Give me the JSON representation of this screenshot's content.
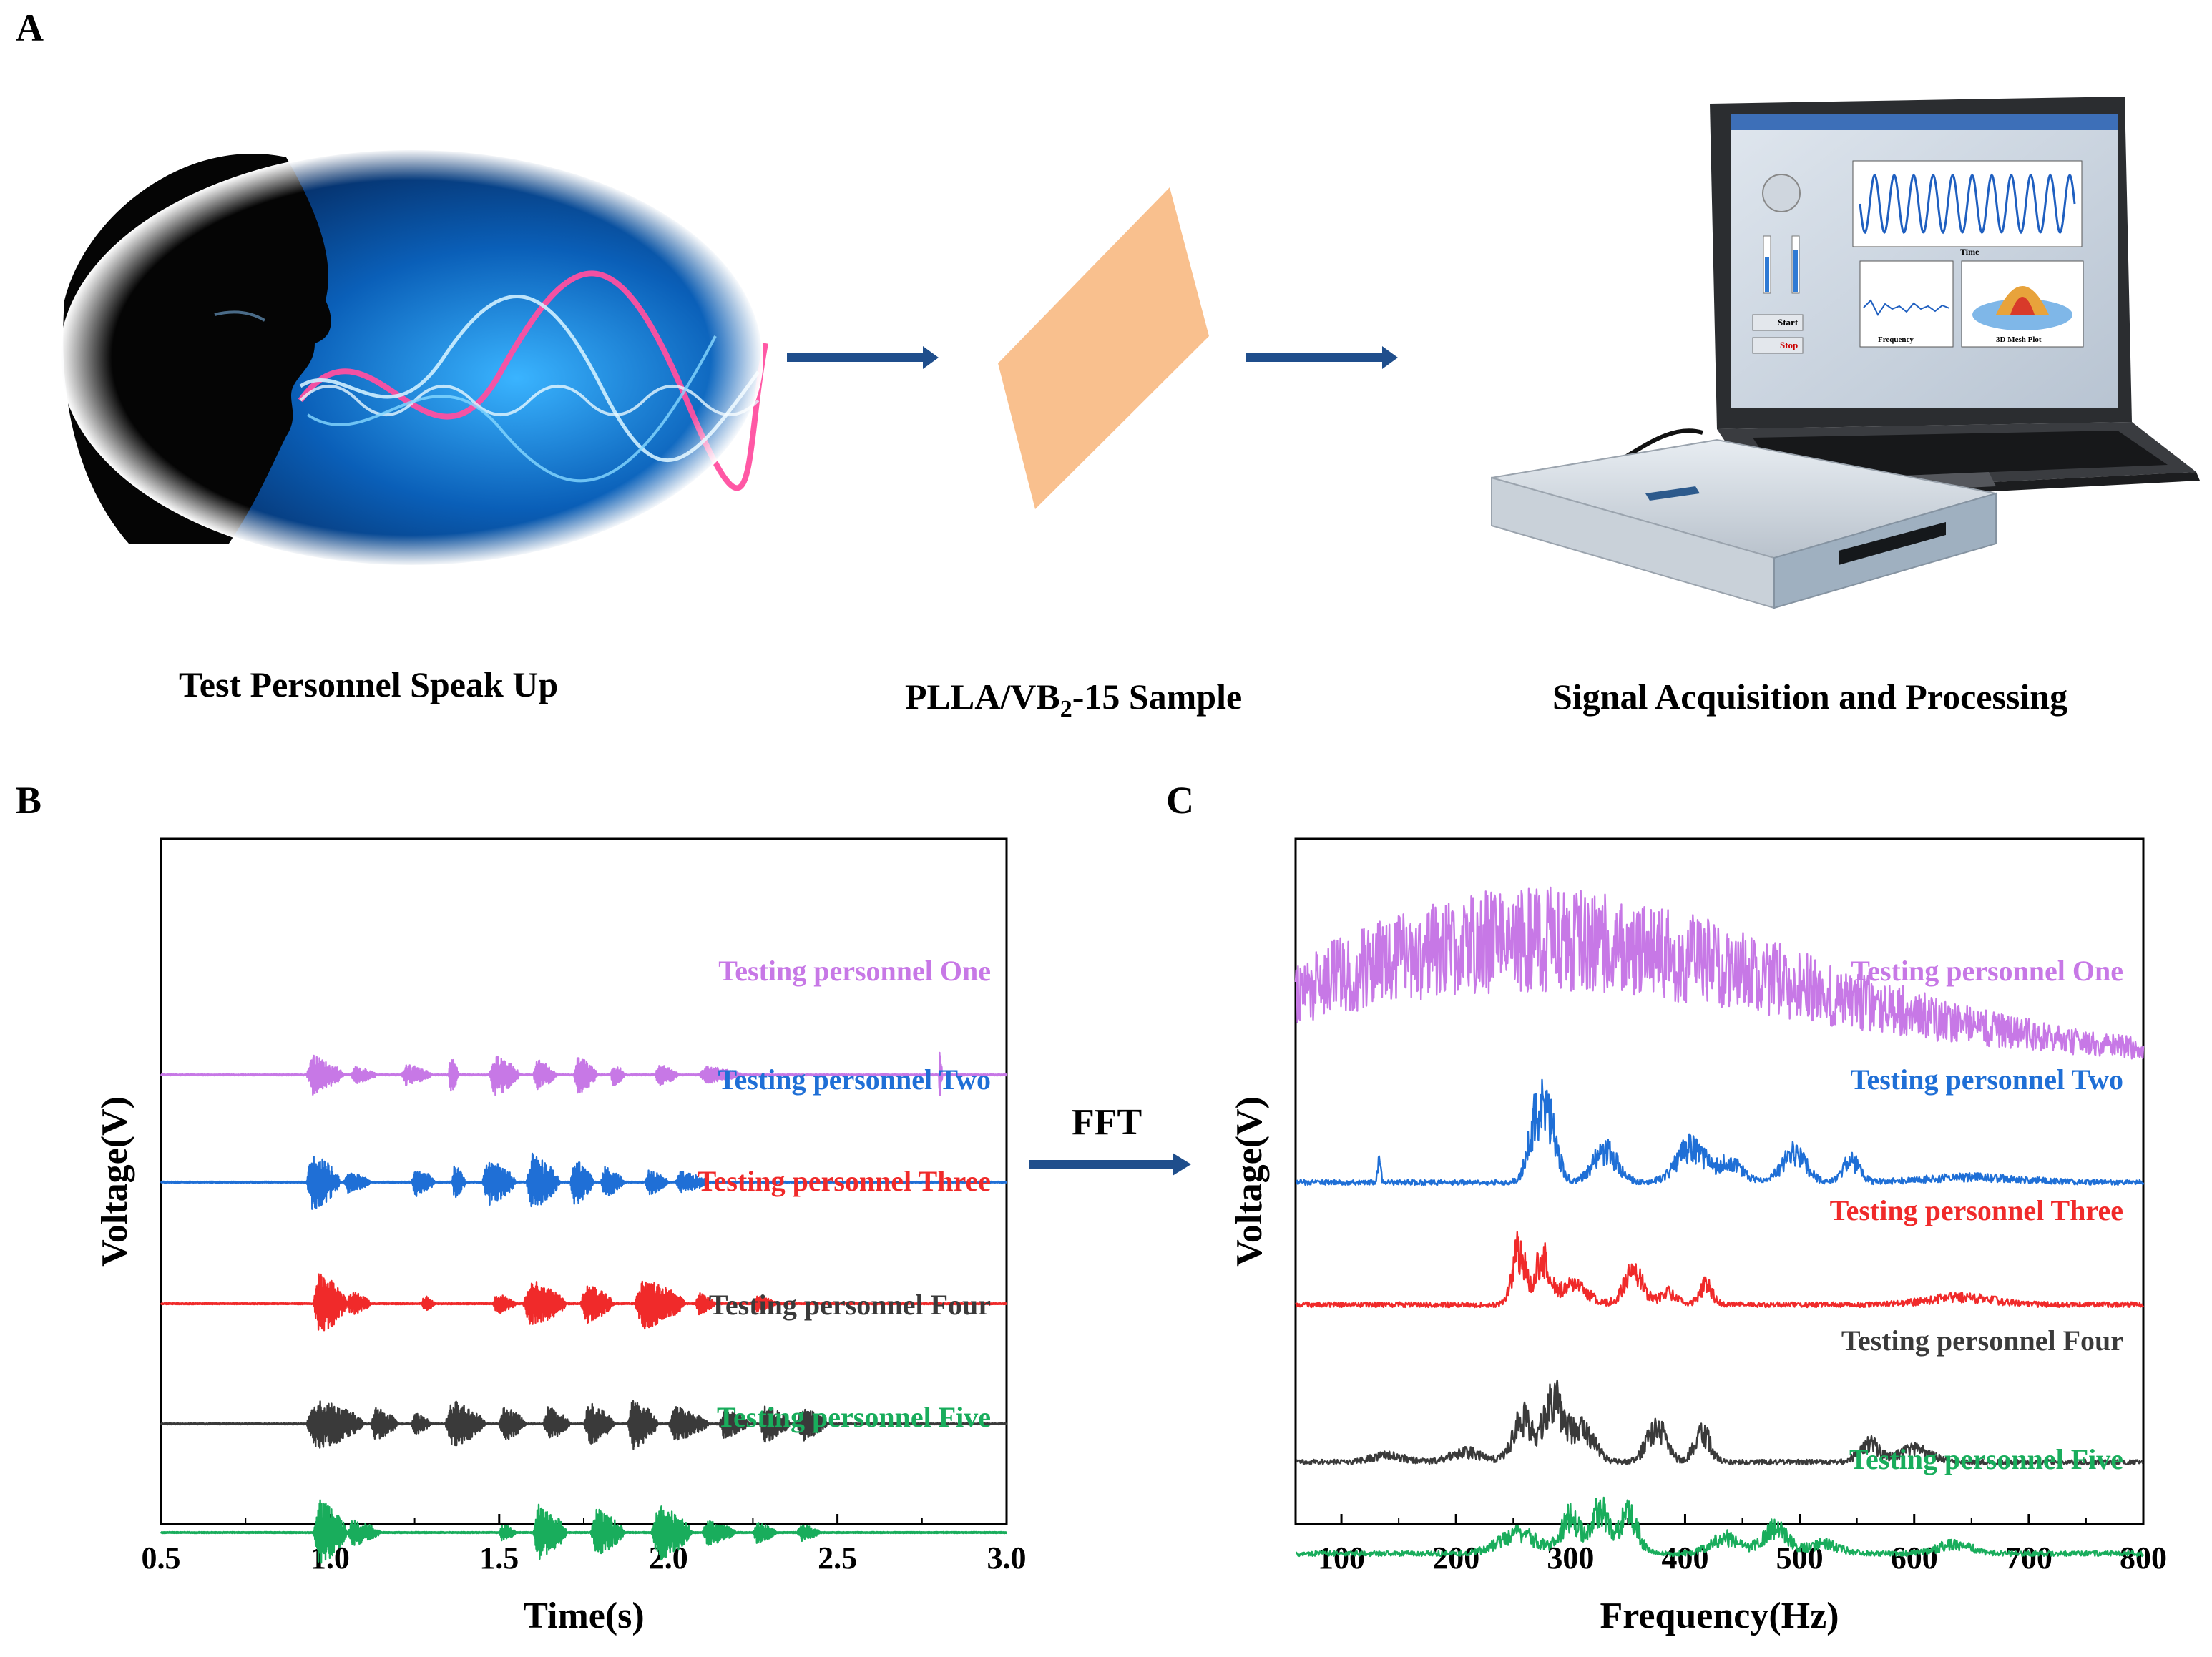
{
  "panel_a": {
    "letter": "A",
    "step1_caption": "Test Personnel Speak Up",
    "step2_caption": {
      "main": "PLLA/VB",
      "sub": "2",
      "suffix": "-15 Sample"
    },
    "step3_caption": "Signal Acquisition and Processing",
    "laptop_screen": {
      "start_label": "Start",
      "stop_label": "Stop",
      "time_label": "Time",
      "frequency_label": "Frequency",
      "mesh_label": "3D Mesh Plot"
    }
  },
  "panel_b": {
    "letter": "B"
  },
  "panel_c": {
    "letter": "C"
  },
  "fft_label": "FFT",
  "colors": {
    "one": "#c778e6",
    "two": "#1f6fd6",
    "three": "#f02a2a",
    "four": "#3a3a3a",
    "five": "#19ad5c",
    "arrow": "#1f4e8c",
    "sample": "#f9c08e"
  },
  "chart_data": [
    {
      "type": "line",
      "xlabel": "Time(s)",
      "ylabel": "Voltage(V)",
      "xlim": [
        0.5,
        3.0
      ],
      "xticks": [
        "0.5",
        "1.0",
        "1.5",
        "2.0",
        "2.5",
        "3.0"
      ],
      "series": [
        {
          "name": "Testing personnel One",
          "color": "#c778e6",
          "bursts": [
            [
              0.93,
              1.04,
              0.9
            ],
            [
              1.06,
              1.14,
              0.4
            ],
            [
              1.21,
              1.3,
              0.5
            ],
            [
              1.35,
              1.38,
              0.9
            ],
            [
              1.47,
              1.56,
              1.0
            ],
            [
              1.6,
              1.67,
              0.7
            ],
            [
              1.72,
              1.79,
              0.9
            ],
            [
              1.83,
              1.87,
              0.6
            ],
            [
              1.96,
              2.03,
              0.5
            ],
            [
              2.09,
              2.22,
              0.4
            ],
            [
              2.8,
              2.81,
              1.2
            ]
          ]
        },
        {
          "name": "Testing personnel Two",
          "color": "#1f6fd6",
          "bursts": [
            [
              0.93,
              1.03,
              1.4
            ],
            [
              1.04,
              1.12,
              0.5
            ],
            [
              1.24,
              1.31,
              0.7
            ],
            [
              1.36,
              1.4,
              0.9
            ],
            [
              1.45,
              1.55,
              1.1
            ],
            [
              1.58,
              1.68,
              1.3
            ],
            [
              1.71,
              1.78,
              1.1
            ],
            [
              1.8,
              1.87,
              0.7
            ],
            [
              1.93,
              2.0,
              0.6
            ],
            [
              2.02,
              2.12,
              0.5
            ]
          ]
        },
        {
          "name": "Testing personnel Three",
          "color": "#f02a2a",
          "bursts": [
            [
              0.95,
              1.05,
              1.5
            ],
            [
              1.05,
              1.12,
              0.6
            ],
            [
              1.27,
              1.31,
              0.4
            ],
            [
              1.48,
              1.55,
              0.5
            ],
            [
              1.57,
              1.7,
              1.1
            ],
            [
              1.74,
              1.84,
              0.9
            ],
            [
              1.9,
              2.05,
              1.2
            ],
            [
              2.08,
              2.14,
              0.5
            ],
            [
              2.25,
              2.32,
              0.4
            ]
          ]
        },
        {
          "name": "Testing personnel Four",
          "color": "#3a3a3a",
          "bursts": [
            [
              0.93,
              1.1,
              1.2
            ],
            [
              1.12,
              1.2,
              0.8
            ],
            [
              1.24,
              1.3,
              0.5
            ],
            [
              1.34,
              1.46,
              1.1
            ],
            [
              1.5,
              1.58,
              0.8
            ],
            [
              1.63,
              1.71,
              0.8
            ],
            [
              1.75,
              1.84,
              1.0
            ],
            [
              1.88,
              1.97,
              1.2
            ],
            [
              2.0,
              2.12,
              0.8
            ],
            [
              2.15,
              2.24,
              0.7
            ],
            [
              2.27,
              2.36,
              0.9
            ],
            [
              2.38,
              2.47,
              0.8
            ]
          ]
        },
        {
          "name": "Testing personnel Five",
          "color": "#19ad5c",
          "bursts": [
            [
              0.95,
              1.05,
              1.6
            ],
            [
              1.05,
              1.15,
              0.6
            ],
            [
              1.5,
              1.55,
              0.4
            ],
            [
              1.6,
              1.7,
              1.3
            ],
            [
              1.77,
              1.87,
              1.1
            ],
            [
              1.95,
              2.07,
              1.3
            ],
            [
              2.1,
              2.2,
              0.6
            ],
            [
              2.25,
              2.32,
              0.5
            ],
            [
              2.38,
              2.45,
              0.4
            ]
          ]
        }
      ]
    },
    {
      "type": "line",
      "xlabel": "Frequency(Hz)",
      "ylabel": "Voltage(V)",
      "xlim": [
        60,
        800
      ],
      "xticks": [
        "100",
        "200",
        "300",
        "400",
        "500",
        "600",
        "700",
        "800"
      ],
      "series": [
        {
          "name": "Testing personnel One",
          "color": "#c778e6",
          "peaks": [
            [
              180,
              220,
              0.15
            ],
            [
              230,
              260,
              0.45
            ],
            [
              270,
              300,
              0.8
            ],
            [
              330,
              350,
              0.4
            ],
            [
              400,
              380,
              0.2
            ],
            [
              520,
              400,
              0.15
            ],
            [
              600,
              640,
              0.1
            ]
          ]
        },
        {
          "name": "Testing personnel Two",
          "color": "#1f6fd6",
          "peaks": [
            [
              133,
              2,
              0.35
            ],
            [
              270,
              10,
              0.9
            ],
            [
              282,
              10,
              0.8
            ],
            [
              330,
              15,
              0.5
            ],
            [
              405,
              18,
              0.55
            ],
            [
              440,
              15,
              0.3
            ],
            [
              495,
              15,
              0.45
            ],
            [
              545,
              10,
              0.35
            ],
            [
              650,
              60,
              0.08
            ]
          ]
        },
        {
          "name": "Testing personnel Three",
          "color": "#f02a2a",
          "peaks": [
            [
              255,
              8,
              0.85
            ],
            [
              275,
              8,
              0.7
            ],
            [
              300,
              20,
              0.3
            ],
            [
              355,
              12,
              0.5
            ],
            [
              385,
              10,
              0.2
            ],
            [
              418,
              8,
              0.3
            ],
            [
              640,
              40,
              0.12
            ]
          ]
        },
        {
          "name": "Testing personnel Four",
          "color": "#3a3a3a",
          "peaks": [
            [
              140,
              20,
              0.1
            ],
            [
              210,
              20,
              0.15
            ],
            [
              258,
              12,
              0.7
            ],
            [
              285,
              12,
              0.95
            ],
            [
              310,
              15,
              0.5
            ],
            [
              375,
              12,
              0.55
            ],
            [
              415,
              10,
              0.45
            ],
            [
              560,
              12,
              0.3
            ],
            [
              600,
              20,
              0.2
            ]
          ]
        },
        {
          "name": "Testing personnel Five",
          "color": "#19ad5c",
          "peaks": [
            [
              255,
              25,
              0.3
            ],
            [
              300,
              12,
              0.55
            ],
            [
              325,
              10,
              0.7
            ],
            [
              350,
              12,
              0.6
            ],
            [
              435,
              18,
              0.25
            ],
            [
              478,
              15,
              0.4
            ],
            [
              520,
              20,
              0.15
            ],
            [
              635,
              20,
              0.15
            ]
          ]
        }
      ]
    }
  ]
}
